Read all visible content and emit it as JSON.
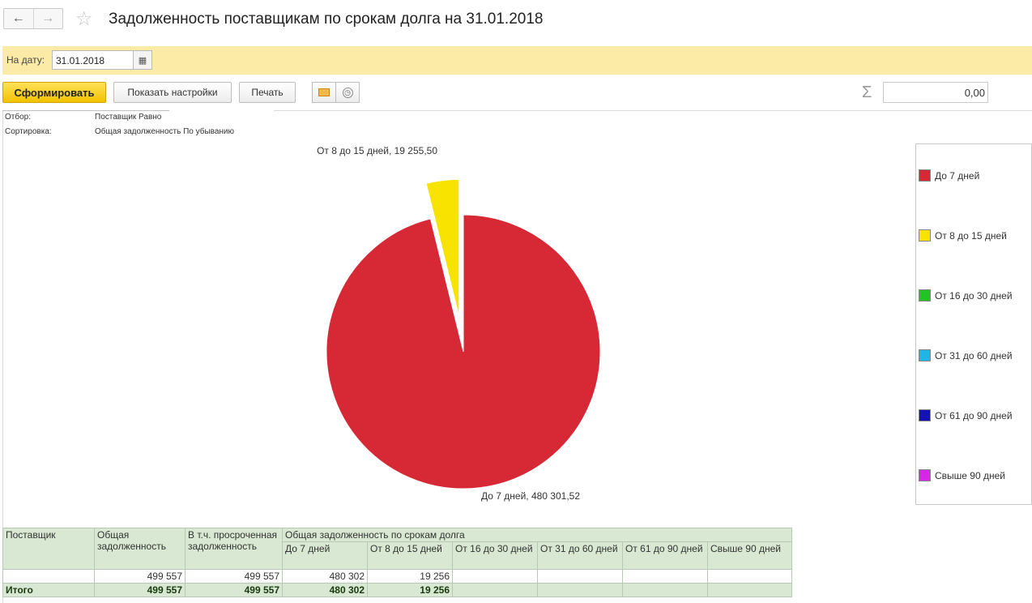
{
  "window": {
    "title": "Задолженность поставщикам по срокам долга на 31.01.2018",
    "back_icon": "←",
    "forward_icon": "→",
    "star_icon": "☆"
  },
  "params": {
    "date_label": "На дату:",
    "date_value": "31.01.2018",
    "calendar_icon": "▦"
  },
  "toolbar": {
    "generate_label": "Сформировать",
    "settings_label": "Показать настройки",
    "print_label": "Печать",
    "clock_icon": "◷",
    "sigma": "Σ",
    "sum_value": "0,00"
  },
  "report_header": {
    "filter_label": "Отбор:",
    "filter_value": "Поставщик Равно",
    "sort_label": "Сортировка:",
    "sort_value": "Общая задолженность По убыванию"
  },
  "chart_data": {
    "type": "pie",
    "series": [
      {
        "name": "До 7 дней",
        "value": 480301.52,
        "label": "До 7 дней, 480 301,52",
        "color": "#d62935"
      },
      {
        "name": "От 8 до 15 дней",
        "value": 19255.5,
        "label": "От 8 до 15 дней, 19 255,50",
        "color": "#f7e200"
      }
    ],
    "legend": [
      {
        "name": "До 7 дней",
        "color": "#d62935"
      },
      {
        "name": "От 8 до 15 дней",
        "color": "#f7e200"
      },
      {
        "name": "От 16 до 30 дней",
        "color": "#23c323"
      },
      {
        "name": "От 31 до 60 дней",
        "color": "#1fb6e5"
      },
      {
        "name": "От 61 до 90 дней",
        "color": "#1512b5"
      },
      {
        "name": "Свыше 90 дней",
        "color": "#d626e6"
      }
    ],
    "legend_position": "right"
  },
  "table": {
    "headers": {
      "supplier": "Поставщик",
      "total": "Общая задолженность",
      "overdue": "В т.ч. просроченная задолженность",
      "group": "Общая задолженность по срокам долга",
      "b1": "До 7 дней",
      "b2": "От 8 до 15 дней",
      "b3": "От 16 до 30 дней",
      "b4": "От 31 до 60 дней",
      "b5": "От 61 до 90 дней",
      "b6": "Свыше 90 дней"
    },
    "row": {
      "supplier": "",
      "total": "499 557",
      "overdue": "499 557",
      "b1": "480 302",
      "b2": "19 256",
      "b3": "",
      "b4": "",
      "b5": "",
      "b6": ""
    },
    "totals": {
      "label": "Итого",
      "total": "499 557",
      "overdue": "499 557",
      "b1": "480 302",
      "b2": "19 256",
      "b3": "",
      "b4": "",
      "b5": "",
      "b6": ""
    }
  }
}
